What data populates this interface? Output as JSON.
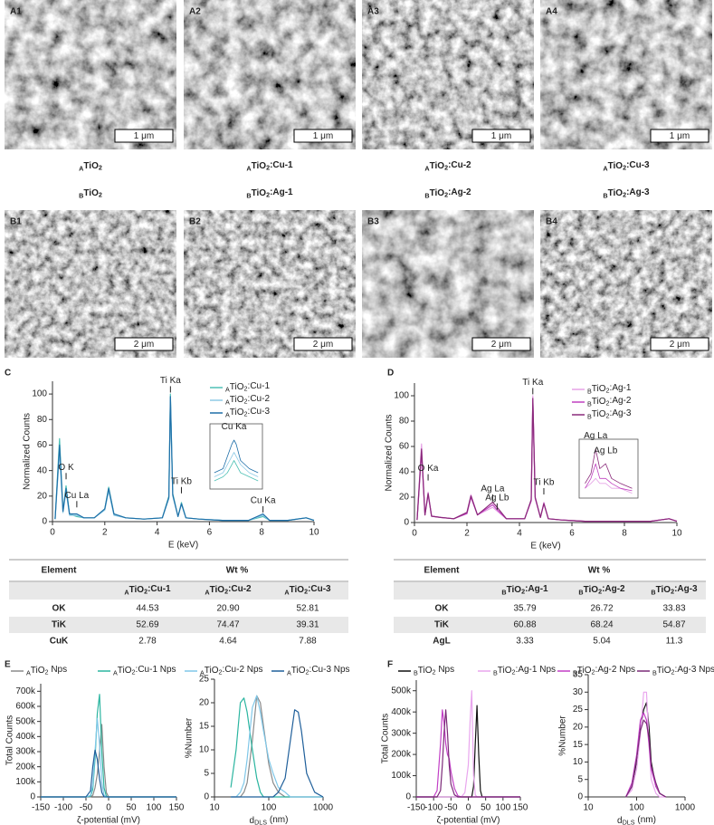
{
  "images": [
    {
      "label": "A1",
      "scale": "1 μm"
    },
    {
      "label": "A2",
      "scale": "1 μm"
    },
    {
      "label": "A3",
      "scale": "1 μm"
    },
    {
      "label": "A4",
      "scale": "1 μm"
    },
    {
      "label": "B1",
      "scale": "2 μm"
    },
    {
      "label": "B2",
      "scale": "2 μm"
    },
    {
      "label": "B3",
      "scale": "2 μm"
    },
    {
      "label": "B4",
      "scale": "2 μm"
    }
  ],
  "captions": {
    "A": [
      "ATiO2",
      "ATiO2:Cu-1",
      "ATiO2:Cu-2",
      "ATiO2:Cu-3"
    ],
    "B": [
      "BTiO2",
      "BTiO2:Ag-1",
      "BTiO2:Ag-2",
      "BTiO2:Ag-3"
    ]
  },
  "panels": [
    "C",
    "D",
    "E",
    "F"
  ],
  "tables": [
    {
      "header": [
        "Element",
        "Wt %"
      ],
      "columns": [
        "ATiO2:Cu-1",
        "ATiO2:Cu-2",
        "ATiO2:Cu-3"
      ],
      "rows": [
        [
          "OK",
          "44.53",
          "20.90",
          "52.81"
        ],
        [
          "TiK",
          "52.69",
          "74.47",
          "39.31"
        ],
        [
          "CuK",
          "2.78",
          "4.64",
          "7.88"
        ]
      ]
    },
    {
      "header": [
        "Element",
        "Wt %"
      ],
      "columns": [
        "BTiO2:Ag-1",
        "BTiO2:Ag-2",
        "BTiO2:Ag-3"
      ],
      "rows": [
        [
          "OK",
          "35.79",
          "26.72",
          "33.83"
        ],
        [
          "TiK",
          "60.88",
          "68.24",
          "54.87"
        ],
        [
          "AgL",
          "3.33",
          "5.04",
          "11.3"
        ]
      ]
    }
  ],
  "chart_data": [
    {
      "type": "line",
      "xlabel": "E (keV)",
      "ylabel": "Normalized Counts",
      "xlim": [
        0,
        10
      ],
      "xticks": [
        0,
        2,
        4,
        6,
        8,
        10
      ],
      "ylim": [
        0,
        110
      ],
      "yticks": [
        0,
        20,
        40,
        60,
        80,
        100
      ],
      "x": [
        0.1,
        0.27,
        0.4,
        0.52,
        0.65,
        0.93,
        1.2,
        1.6,
        2.0,
        2.15,
        2.35,
        2.8,
        3.5,
        4.2,
        4.45,
        4.51,
        4.6,
        4.8,
        4.93,
        5.1,
        5.6,
        6.5,
        7.5,
        8.05,
        8.3,
        9.0,
        9.7,
        10
      ],
      "series": [
        {
          "name": "ATiO2:Cu-1",
          "color": "#4fc1b5",
          "values": [
            2,
            65,
            8,
            28,
            6,
            4,
            3,
            3,
            10,
            27,
            6,
            3,
            2,
            3,
            20,
            100,
            22,
            4,
            15,
            3,
            2,
            1,
            1,
            4,
            1,
            1,
            3,
            1
          ]
        },
        {
          "name": "ATiO2:Cu-2",
          "color": "#8fcbe6",
          "values": [
            2,
            55,
            7,
            24,
            5,
            5,
            3,
            3,
            9,
            24,
            5,
            3,
            2,
            3,
            18,
            96,
            20,
            4,
            14,
            3,
            2,
            1,
            1,
            5,
            1,
            1,
            3,
            1
          ]
        },
        {
          "name": "ATiO2:Cu-3",
          "color": "#1f6fa8",
          "values": [
            2,
            60,
            8,
            26,
            6,
            6,
            3,
            3,
            10,
            26,
            6,
            3,
            2,
            3,
            19,
            98,
            21,
            4,
            14,
            3,
            2,
            1,
            1,
            6,
            1,
            1,
            3,
            1
          ]
        }
      ],
      "annotations": [
        {
          "text": "Ti Ka",
          "x": 4.51,
          "y": 104
        },
        {
          "text": "O K",
          "x": 0.52,
          "y": 36
        },
        {
          "text": "Cu La",
          "x": 0.93,
          "y": 14
        },
        {
          "text": "Ti Kb",
          "x": 4.93,
          "y": 25
        },
        {
          "text": "Cu Ka",
          "x": 8.05,
          "y": 10
        }
      ]
    },
    {
      "type": "line",
      "frame": true,
      "xlim": [
        7.5,
        8.7
      ],
      "ylim": [
        0,
        8
      ],
      "x": [
        7.6,
        7.8,
        7.9,
        8.0,
        8.05,
        8.1,
        8.2,
        8.4,
        8.6
      ],
      "series": [
        {
          "color": "#4fc1b5",
          "values": [
            1,
            1.5,
            2,
            3,
            3.5,
            3,
            2,
            1.5,
            1
          ]
        },
        {
          "color": "#8fcbe6",
          "values": [
            1.5,
            2,
            3,
            4,
            4.5,
            4,
            3,
            2,
            1.5
          ]
        },
        {
          "color": "#1f6fa8",
          "values": [
            2,
            2.5,
            4,
            5.5,
            6,
            5.5,
            3.5,
            2.5,
            2
          ]
        }
      ],
      "annotations": [
        {
          "text": "Cu Ka",
          "x": 8.05,
          "y": 6.6
        }
      ]
    },
    {
      "type": "line",
      "xlabel": "E (keV)",
      "ylabel": "Normalized Counts",
      "xlim": [
        0,
        10
      ],
      "xticks": [
        0,
        2,
        4,
        6,
        8,
        10
      ],
      "ylim": [
        0,
        110
      ],
      "yticks": [
        0,
        20,
        40,
        60,
        80,
        100
      ],
      "x": [
        0.1,
        0.27,
        0.4,
        0.52,
        0.65,
        1.0,
        1.5,
        2.0,
        2.15,
        2.4,
        2.98,
        3.15,
        3.5,
        4.2,
        4.45,
        4.51,
        4.6,
        4.8,
        4.93,
        5.1,
        5.6,
        6.5,
        8,
        9.0,
        9.7,
        10
      ],
      "series": [
        {
          "name": "BTiO2:Ag-1",
          "color": "#e6a3e6",
          "values": [
            2,
            62,
            6,
            24,
            5,
            4,
            3,
            8,
            22,
            6,
            12,
            9,
            3,
            3,
            18,
            100,
            20,
            4,
            16,
            3,
            2,
            1,
            1,
            1,
            3,
            1
          ]
        },
        {
          "name": "BTiO2:Ag-2",
          "color": "#c040c0",
          "values": [
            2,
            55,
            6,
            22,
            5,
            4,
            3,
            7,
            20,
            6,
            14,
            10,
            3,
            3,
            17,
            97,
            19,
            4,
            15,
            3,
            2,
            1,
            1,
            1,
            3,
            1
          ]
        },
        {
          "name": "BTiO2:Ag-3",
          "color": "#8a2a7a",
          "values": [
            2,
            58,
            6,
            23,
            5,
            4,
            3,
            8,
            21,
            6,
            16,
            12,
            3,
            3,
            18,
            98,
            20,
            4,
            15,
            3,
            2,
            1,
            1,
            1,
            3,
            1
          ]
        }
      ],
      "annotations": [
        {
          "text": "Ti Ka",
          "x": 4.51,
          "y": 104
        },
        {
          "text": "O Ka",
          "x": 0.52,
          "y": 36
        },
        {
          "text": "Ag La",
          "x": 2.98,
          "y": 20
        },
        {
          "text": "Ag Lb",
          "x": 3.15,
          "y": 13
        },
        {
          "text": "Ti Kb",
          "x": 4.93,
          "y": 25
        }
      ]
    },
    {
      "type": "line",
      "frame": true,
      "xlim": [
        2.7,
        3.7
      ],
      "ylim": [
        0,
        12
      ],
      "x": [
        2.8,
        2.9,
        2.98,
        3.05,
        3.15,
        3.25,
        3.4,
        3.6
      ],
      "series": [
        {
          "color": "#e6a3e6",
          "values": [
            2,
            3,
            4,
            3,
            3,
            2,
            2,
            1
          ]
        },
        {
          "color": "#c040c0",
          "values": [
            2,
            4,
            7,
            4,
            4,
            3,
            2,
            1.5
          ]
        },
        {
          "color": "#8a2a7a",
          "values": [
            3,
            5,
            10,
            6,
            7,
            4,
            3,
            2
          ]
        }
      ],
      "annotations": [
        {
          "text": "Ag La",
          "x": 2.98,
          "y": 11
        },
        {
          "text": "Ag Lb",
          "x": 3.15,
          "y": 8
        }
      ]
    },
    {
      "type": "line",
      "xlabel": "ζ-potential (mV)",
      "ylabel": "Total Counts",
      "xlim": [
        -150,
        150
      ],
      "xticks": [
        -150,
        -100,
        -50,
        0,
        50,
        100,
        150
      ],
      "ylim": [
        0,
        750000
      ],
      "yticks": [
        0,
        {
          "value": 100000,
          "label": "100k"
        },
        {
          "value": 200000,
          "label": "200k"
        },
        {
          "value": 300000,
          "label": "300k"
        },
        {
          "value": 400000,
          "label": "400k"
        },
        {
          "value": 500000,
          "label": "500k"
        },
        {
          "value": 600000,
          "label": "600k"
        },
        {
          "value": 700000,
          "label": "700k"
        }
      ],
      "x": [
        -150,
        -50,
        -40,
        -35,
        -30,
        -25,
        -20,
        -15,
        -10,
        -5,
        0,
        150
      ],
      "series": [
        {
          "name": "ATiO2 Nps",
          "color": "#8a8a8a",
          "values": [
            0,
            0,
            0,
            10000,
            60000,
            150000,
            300000,
            480000,
            200000,
            30000,
            0,
            0
          ]
        },
        {
          "name": "ATiO2:Cu-1 Nps",
          "color": "#2bb5a0",
          "values": [
            0,
            0,
            5000,
            50000,
            250000,
            550000,
            680000,
            300000,
            60000,
            5000,
            0,
            0
          ]
        },
        {
          "name": "ATiO2:Cu-2 Nps",
          "color": "#7fc7e8",
          "values": [
            0,
            0,
            10000,
            80000,
            300000,
            520000,
            350000,
            100000,
            10000,
            0,
            0,
            0
          ]
        },
        {
          "name": "ATiO2:Cu-3 Nps",
          "color": "#1f5f9a",
          "values": [
            0,
            0,
            40000,
            200000,
            310000,
            250000,
            120000,
            30000,
            0,
            0,
            0,
            0
          ]
        }
      ]
    },
    {
      "type": "line",
      "xscale": "log",
      "xlabel": "dDLS (nm)",
      "ylabel": "%Number",
      "xlim": [
        10,
        1000
      ],
      "xticks": [
        10,
        100,
        1000
      ],
      "ylim": [
        0,
        25
      ],
      "yticks": [
        0,
        5,
        10,
        15,
        20,
        25
      ],
      "x": [
        20,
        25,
        30,
        35,
        40,
        50,
        60,
        70,
        80,
        100,
        120,
        150,
        200,
        250,
        300,
        350,
        400,
        500,
        700,
        1000
      ],
      "series": [
        {
          "color": "#8a8a8a",
          "values": [
            0,
            0,
            0,
            1,
            3,
            12,
            21.5,
            20,
            15,
            7,
            3,
            1,
            0,
            0,
            0,
            0,
            0,
            0,
            0,
            0
          ]
        },
        {
          "color": "#2bb5a0",
          "values": [
            2,
            10,
            20,
            21,
            18,
            10,
            4,
            1,
            0,
            0,
            0,
            0,
            0,
            0,
            0,
            0,
            0,
            0,
            0,
            0
          ]
        },
        {
          "color": "#7fc7e8",
          "values": [
            0,
            0,
            1,
            3,
            8,
            19,
            21.5,
            18,
            14,
            8,
            5,
            2,
            1,
            0,
            0,
            0,
            0,
            0,
            0,
            0
          ]
        },
        {
          "color": "#1f5f9a",
          "values": [
            0,
            0,
            0,
            0,
            0,
            0,
            0,
            0,
            0,
            0,
            0,
            1,
            4,
            12,
            18.5,
            18,
            14,
            5,
            1,
            0
          ]
        }
      ]
    },
    {
      "type": "line",
      "xlabel": "ζ-potential (mV)",
      "ylabel": "Total Counts",
      "xlim": [
        -150,
        150
      ],
      "xticks": [
        -150,
        -100,
        -50,
        0,
        50,
        100,
        150
      ],
      "ylim": [
        0,
        550000
      ],
      "yticks": [
        0,
        {
          "value": 100000,
          "label": "100k"
        },
        {
          "value": 200000,
          "label": "200k"
        },
        {
          "value": 300000,
          "label": "300k"
        },
        {
          "value": 400000,
          "label": "400k"
        },
        {
          "value": 500000,
          "label": "500k"
        }
      ],
      "x": [
        -150,
        -100,
        -90,
        -80,
        -75,
        -70,
        -65,
        -60,
        -55,
        -50,
        -40,
        -30,
        -20,
        -10,
        0,
        5,
        10,
        15,
        20,
        25,
        30,
        35,
        40,
        150
      ],
      "series": [
        {
          "name": "BTiO2 Nps",
          "color": "#111111",
          "values": [
            0,
            0,
            0,
            0,
            0,
            0,
            0,
            0,
            0,
            0,
            0,
            0,
            0,
            0,
            0,
            0,
            0,
            50000,
            250000,
            430000,
            200000,
            30000,
            0,
            0
          ]
        },
        {
          "name": "BTiO2:Ag-1 Nps",
          "color": "#e9a6ee",
          "values": [
            0,
            0,
            0,
            0,
            0,
            0,
            0,
            0,
            0,
            0,
            0,
            0,
            0,
            20000,
            150000,
            350000,
            500000,
            100000,
            10000,
            0,
            0,
            0,
            0,
            0
          ]
        },
        {
          "name": "BTiO2:Ag-2 Nps",
          "color": "#c23fc6",
          "values": [
            0,
            0,
            30000,
            250000,
            410000,
            350000,
            250000,
            200000,
            180000,
            120000,
            40000,
            5000,
            0,
            0,
            0,
            0,
            0,
            0,
            0,
            0,
            0,
            0,
            0,
            0
          ]
        },
        {
          "name": "BTiO2:Ag-3 Nps",
          "color": "#7b2a78",
          "values": [
            0,
            0,
            0,
            30000,
            150000,
            300000,
            410000,
            300000,
            150000,
            60000,
            10000,
            0,
            0,
            0,
            0,
            0,
            0,
            0,
            0,
            0,
            0,
            0,
            0,
            0
          ]
        }
      ]
    },
    {
      "type": "line",
      "xscale": "log",
      "xlabel": "dDLS (nm)",
      "ylabel": "%Number",
      "xlim": [
        10,
        1000
      ],
      "xticks": [
        10,
        100,
        1000
      ],
      "ylim": [
        0,
        35
      ],
      "yticks": [
        0,
        5,
        10,
        15,
        20,
        25,
        30,
        35
      ],
      "x": [
        60,
        80,
        100,
        120,
        140,
        160,
        180,
        200,
        250,
        300,
        400
      ],
      "series": [
        {
          "color": "#111111",
          "values": [
            0,
            3,
            10,
            20,
            25,
            27,
            20,
            10,
            3,
            1,
            0
          ]
        },
        {
          "color": "#e9a6ee",
          "values": [
            0,
            2,
            8,
            18,
            30,
            30,
            15,
            5,
            1,
            0,
            0
          ]
        },
        {
          "color": "#c23fc6",
          "values": [
            0,
            4,
            12,
            22,
            24,
            22,
            15,
            8,
            3,
            1,
            0
          ]
        },
        {
          "color": "#7b2a78",
          "values": [
            0,
            3,
            11,
            19,
            22,
            21,
            17,
            9,
            4,
            1,
            0
          ]
        }
      ]
    }
  ]
}
